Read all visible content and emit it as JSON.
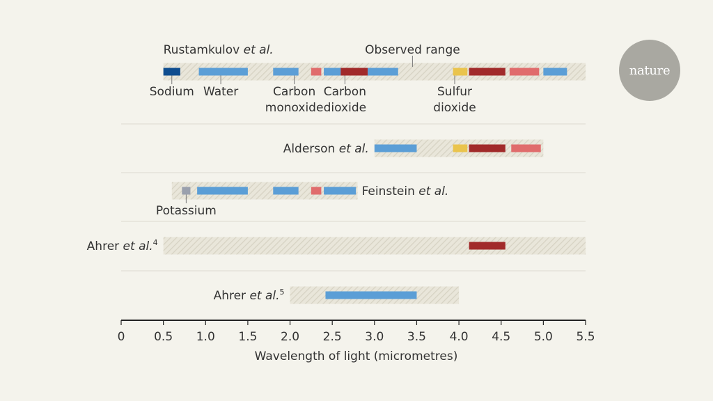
{
  "logo_text": "nature",
  "colors": {
    "sodium": "#0f4d8f",
    "water": "#5b9ed6",
    "carbon_monoxide": "#5b9ed6",
    "carbon_dioxide": "#a12a2a",
    "sulfur_dioxide": "#a12a2a",
    "potassium": "#9aa0ad",
    "yellow": "#eac44d",
    "light_red": "#e06c6c",
    "observed_range_fill": "#e9e6da",
    "observed_range_hatch": "#d6d2c3",
    "axis": "#222222",
    "divider": "#dcdad0"
  },
  "chart_data": {
    "type": "range-bar",
    "xlabel": "Wavelength of light (micrometres)",
    "xlim": [
      0,
      5.5
    ],
    "ticks": [
      0,
      0.5,
      1.0,
      1.5,
      2.0,
      2.5,
      3.0,
      3.5,
      4.0,
      4.5,
      5.0,
      5.5
    ],
    "tick_labels": [
      "0",
      "0.5",
      "1.0",
      "1.5",
      "2.0",
      "2.5",
      "3.0",
      "3.5",
      "4.0",
      "4.5",
      "5.0",
      "5.5"
    ],
    "observed_range_label": "Observed range",
    "rows": [
      {
        "label": "Rustamkulov",
        "label_italic": "et al.",
        "label_sup": "",
        "range": [
          0.5,
          5.5
        ],
        "bars": [
          {
            "start": 0.5,
            "end": 0.7,
            "color": "sodium"
          },
          {
            "start": 0.92,
            "end": 1.5,
            "color": "water"
          },
          {
            "start": 1.8,
            "end": 2.1,
            "color": "water"
          },
          {
            "start": 2.25,
            "end": 2.37,
            "color": "light_red"
          },
          {
            "start": 2.4,
            "end": 2.6,
            "color": "water"
          },
          {
            "start": 2.6,
            "end": 2.92,
            "color": "carbon_dioxide"
          },
          {
            "start": 2.92,
            "end": 3.28,
            "color": "water"
          },
          {
            "start": 3.93,
            "end": 4.1,
            "color": "yellow"
          },
          {
            "start": 4.12,
            "end": 4.55,
            "color": "carbon_dioxide"
          },
          {
            "start": 4.6,
            "end": 4.95,
            "color": "light_red"
          },
          {
            "start": 5.0,
            "end": 5.28,
            "color": "water"
          }
        ],
        "annotations": [
          {
            "x": 0.6,
            "line1": "Sodium",
            "line2": ""
          },
          {
            "x": 1.18,
            "line1": "Water",
            "line2": ""
          },
          {
            "x": 2.05,
            "line1": "Carbon",
            "line2": "monoxide"
          },
          {
            "x": 2.65,
            "line1": "Carbon",
            "line2": "dioxide"
          },
          {
            "x": 3.95,
            "line1": "Sulfur",
            "line2": "dioxide"
          }
        ]
      },
      {
        "label": "Alderson",
        "label_italic": "et al.",
        "label_sup": "",
        "range": [
          3.0,
          5.0
        ],
        "bars": [
          {
            "start": 3.0,
            "end": 3.5,
            "color": "water"
          },
          {
            "start": 3.93,
            "end": 4.1,
            "color": "yellow"
          },
          {
            "start": 4.12,
            "end": 4.55,
            "color": "carbon_dioxide"
          },
          {
            "start": 4.62,
            "end": 4.97,
            "color": "light_red"
          }
        ],
        "annotations": []
      },
      {
        "label": "Feinstein",
        "label_italic": "et al.",
        "label_sup": "",
        "range": [
          0.6,
          2.8
        ],
        "bars": [
          {
            "start": 0.72,
            "end": 0.82,
            "color": "potassium"
          },
          {
            "start": 0.9,
            "end": 1.5,
            "color": "water"
          },
          {
            "start": 1.8,
            "end": 2.1,
            "color": "water"
          },
          {
            "start": 2.25,
            "end": 2.37,
            "color": "light_red"
          },
          {
            "start": 2.4,
            "end": 2.78,
            "color": "water"
          }
        ],
        "annotations": [
          {
            "x": 0.77,
            "line1": "Potassium",
            "line2": ""
          }
        ]
      },
      {
        "label": "Ahrer",
        "label_italic": "et al.",
        "label_sup": "4",
        "range": [
          0.5,
          5.5
        ],
        "bars": [
          {
            "start": 4.12,
            "end": 4.55,
            "color": "carbon_dioxide"
          }
        ],
        "annotations": []
      },
      {
        "label": "Ahrer",
        "label_italic": "et al.",
        "label_sup": "5",
        "range": [
          2.0,
          4.0
        ],
        "bars": [
          {
            "start": 2.42,
            "end": 3.5,
            "color": "water"
          }
        ],
        "annotations": []
      }
    ]
  }
}
